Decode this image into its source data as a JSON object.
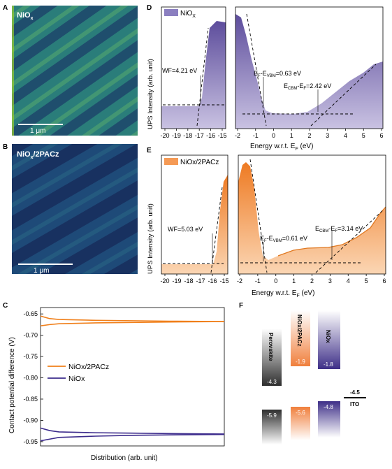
{
  "panels": {
    "A": {
      "letter": "A",
      "title_base": "NiO",
      "title_sub": "x",
      "scale_bar": "1 μm"
    },
    "B": {
      "letter": "B",
      "title_base": "NiO",
      "title_sub": "x",
      "title_rest": "/2PACz",
      "scale_bar": "1 μm"
    },
    "D": {
      "letter": "D",
      "legend": {
        "base": "NiO",
        "sub": "X"
      },
      "ylabel": "UPS Intensity (arb. unit)",
      "xlabel": {
        "base": "Energy w.r.t. E",
        "sub": "F",
        "rest": " (eV)"
      },
      "wf": "WF=4.21 eV",
      "vbm": {
        "a": "E",
        "a_sub": "F",
        "b": "-E",
        "b_sub": "VBM",
        "c": "=0.63 eV"
      },
      "cbm": {
        "a": "E",
        "a_sub": "CBM",
        "b": "-E",
        "b_sub": "F",
        "c": "=2.42 eV"
      },
      "left_ticks": [
        "-20",
        "-19",
        "-18",
        "-17",
        "-16",
        "-15"
      ],
      "right_ticks": [
        "-2",
        "-1",
        "0",
        "1",
        "2",
        "3",
        "4",
        "5",
        "6"
      ],
      "color": "#6a5aa6"
    },
    "E": {
      "letter": "E",
      "legend": "NiOx/2PACz",
      "ylabel": "UPS Intensity (arb. unit)",
      "xlabel": {
        "base": "Energy w.r.t. E",
        "sub": "F",
        "rest": " (eV)"
      },
      "wf": "WF=5.03 eV",
      "vbm": {
        "a": "E",
        "a_sub": "F",
        "b": "-E",
        "b_sub": "VBM",
        "c": "=0.61 eV"
      },
      "cbm": {
        "a": "E",
        "a_sub": "CBM",
        "b": "-E",
        "b_sub": "F",
        "c": "=3.14 eV"
      },
      "left_ticks": [
        "-20",
        "-19",
        "-18",
        "-17",
        "-16",
        "-15"
      ],
      "right_ticks": [
        "-2",
        "-1",
        "0",
        "1",
        "2",
        "3",
        "4",
        "5",
        "6"
      ],
      "color": "#f08a3a"
    },
    "C": {
      "letter": "C",
      "ylabel": "Contact potential difference (V)",
      "xlabel": "Distribution (arb. unit)",
      "legend": [
        {
          "name": "NiOx/2PACz",
          "color": "#f07f1a"
        },
        {
          "name": "NiOx",
          "color": "#3c2b8c"
        }
      ],
      "yticks": [
        "-0.65",
        "-0.70",
        "-0.75",
        "-0.80",
        "-0.85",
        "-0.90",
        "-0.95"
      ],
      "ylim": [
        -0.96,
        -0.635
      ]
    },
    "F": {
      "letter": "F",
      "columns": [
        {
          "name": "Perovskite",
          "top": "-4.3",
          "bottom": "-5.9",
          "color": "#3a3a3a"
        },
        {
          "name": "NiOx/2PACz",
          "top": "-1.9",
          "bottom": "-5.6",
          "color": "#f08a50"
        },
        {
          "name": "NiOx",
          "top": "-1.8",
          "bottom": "-4.8",
          "color": "#4a3d8f"
        }
      ],
      "ito": {
        "name": "ITO",
        "value": "-4.5"
      }
    }
  },
  "chart_data": [
    {
      "type": "line",
      "title": "",
      "xlabel": "Distribution (arb. unit)",
      "ylabel": "Contact potential difference (V)",
      "ylim": [
        -0.96,
        -0.635
      ],
      "series": [
        {
          "name": "NiOx/2PACz",
          "x": [
            0,
            0.05,
            0.1,
            0.3,
            0.5,
            0.7,
            1.0
          ],
          "upper": [
            -0.655,
            -0.661,
            -0.663,
            -0.665,
            -0.666,
            -0.667,
            -0.668
          ],
          "lower": [
            -0.678,
            -0.675,
            -0.673,
            -0.671,
            -0.67,
            -0.669,
            -0.668
          ]
        },
        {
          "name": "NiOx",
          "x": [
            0,
            0.05,
            0.1,
            0.3,
            0.5,
            0.7,
            1.0
          ],
          "upper": [
            -0.918,
            -0.924,
            -0.927,
            -0.929,
            -0.93,
            -0.931,
            -0.932
          ],
          "lower": [
            -0.948,
            -0.944,
            -0.94,
            -0.937,
            -0.935,
            -0.934,
            -0.933
          ]
        }
      ]
    }
  ]
}
